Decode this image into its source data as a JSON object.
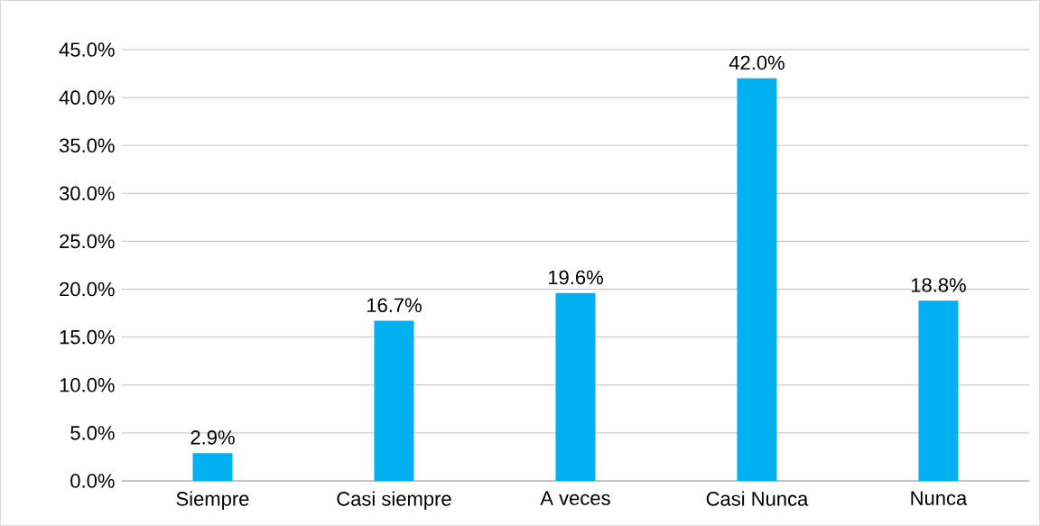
{
  "chart_data": {
    "type": "bar",
    "categories": [
      "Siempre",
      "Casi siempre",
      "A veces",
      "Casi Nunca",
      "Nunca"
    ],
    "values": [
      2.9,
      16.7,
      19.6,
      42.0,
      18.8
    ],
    "value_labels": [
      "2.9%",
      "16.7%",
      "19.6%",
      "42.0%",
      "18.8%"
    ],
    "color": "#00b0f0",
    "ylim": [
      0,
      45
    ],
    "yticks": [
      {
        "value": 0,
        "label": "0.0%"
      },
      {
        "value": 5,
        "label": "5.0%"
      },
      {
        "value": 10,
        "label": "10.0%"
      },
      {
        "value": 15,
        "label": "15.0%"
      },
      {
        "value": 20,
        "label": "20.0%"
      },
      {
        "value": 25,
        "label": "25.0%"
      },
      {
        "value": 30,
        "label": "30.0%"
      },
      {
        "value": 35,
        "label": "35.0%"
      },
      {
        "value": 40,
        "label": "40.0%"
      },
      {
        "value": 45,
        "label": "45.0%"
      }
    ],
    "grid": "y"
  }
}
